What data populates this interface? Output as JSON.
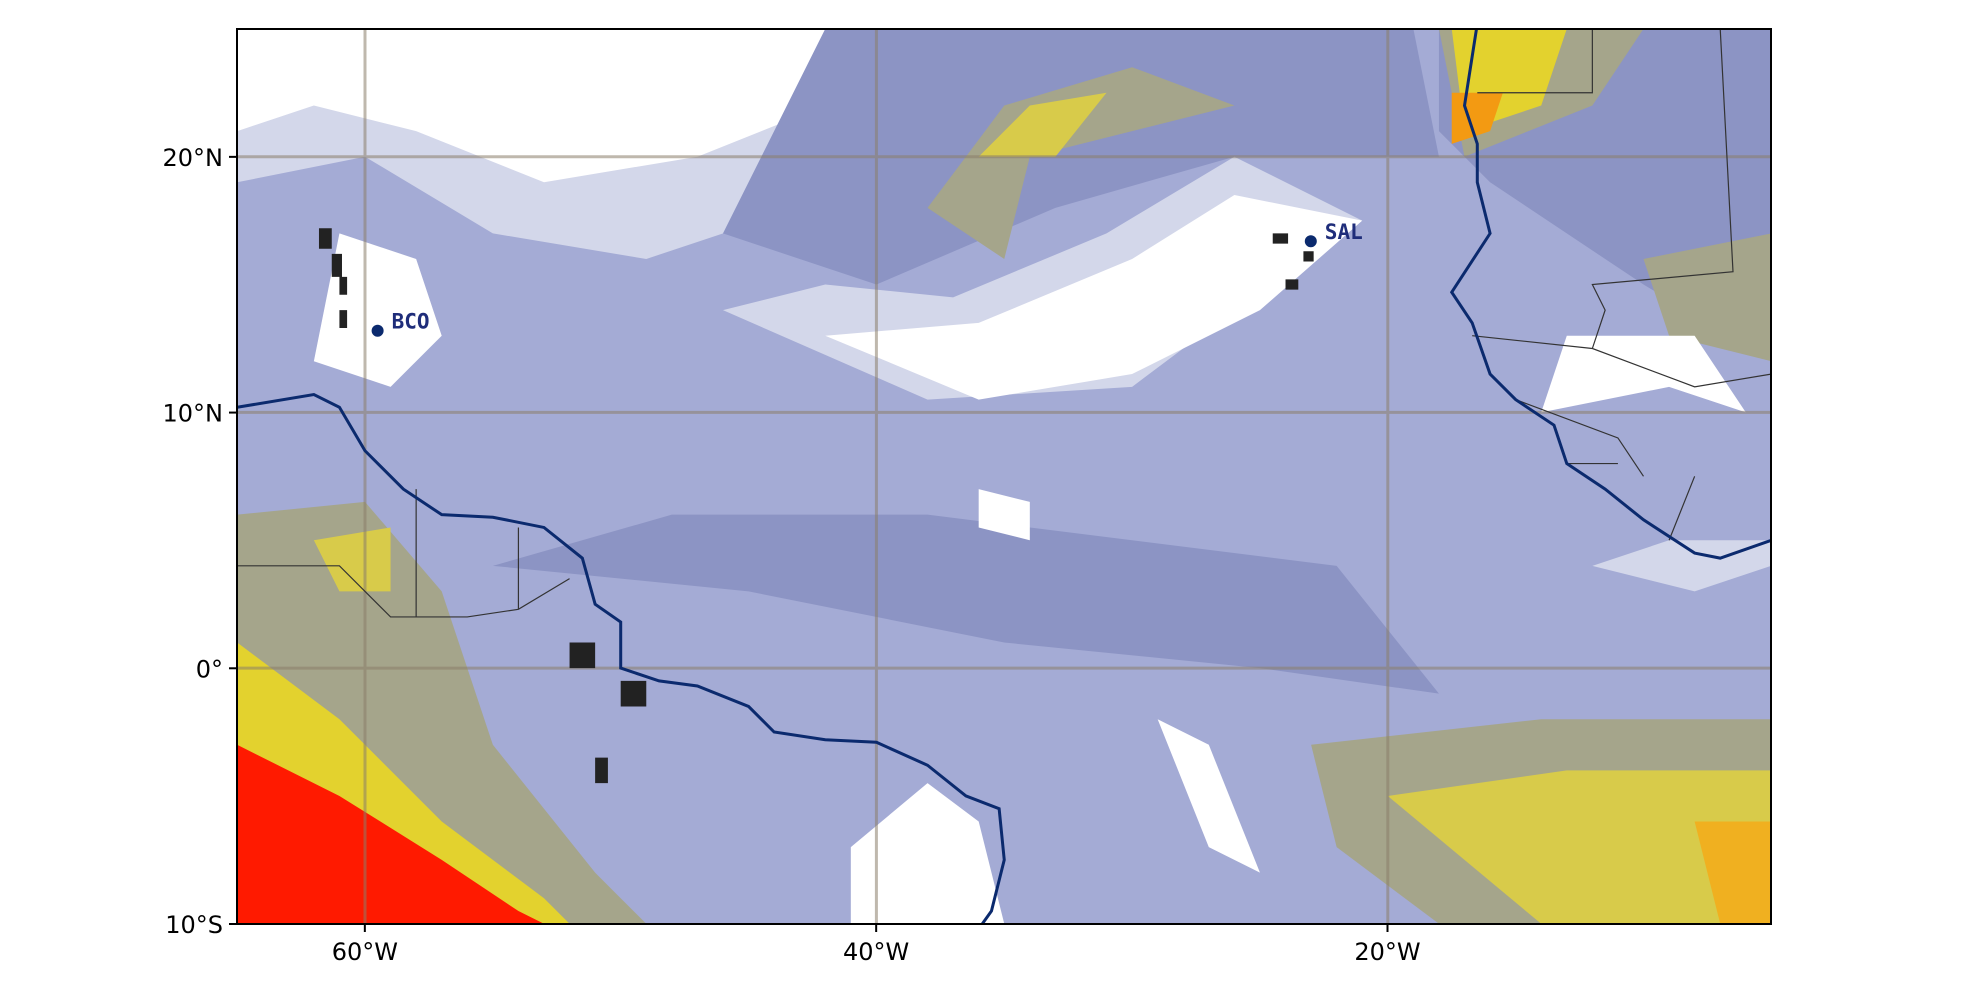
{
  "map": {
    "xlim": [
      -65,
      -5
    ],
    "ylim": [
      -10,
      25
    ],
    "xticks": [
      {
        "value": -60,
        "label": "60°W"
      },
      {
        "value": -40,
        "label": "40°W"
      },
      {
        "value": -20,
        "label": "20°W"
      }
    ],
    "yticks": [
      {
        "value": -10,
        "label": "10°S"
      },
      {
        "value": 0,
        "label": "0°"
      },
      {
        "value": 10,
        "label": "10°N"
      },
      {
        "value": 20,
        "label": "20°N"
      }
    ],
    "stations": [
      {
        "name": "BCO",
        "lon": -59.5,
        "lat": 13.2
      },
      {
        "name": "SAL",
        "lon": -23,
        "lat": 16.7
      }
    ]
  }
}
